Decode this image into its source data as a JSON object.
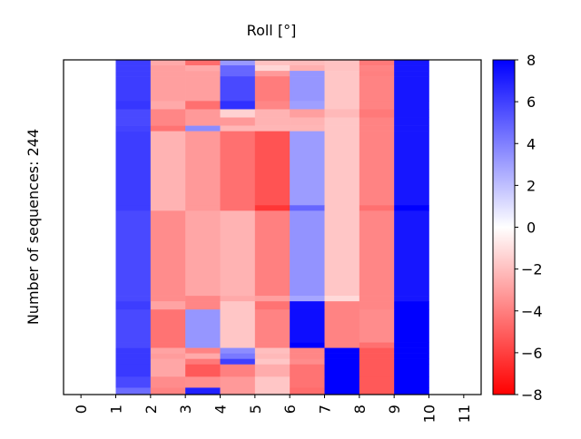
{
  "chart_data": {
    "type": "heatmap",
    "title": "Roll [°]",
    "xlabel": "",
    "ylabel": "Number of sequences: 244",
    "xlim": [
      -0.5,
      11.5
    ],
    "x_ticks": [
      "0",
      "1",
      "2",
      "3",
      "4",
      "5",
      "6",
      "7",
      "8",
      "9",
      "10",
      "11"
    ],
    "columns_x_edges": [
      1,
      2,
      3,
      4,
      5,
      6,
      7,
      8,
      9,
      10
    ],
    "ylim": [
      0,
      244
    ],
    "colormap": "bwr",
    "colors": {
      "min": "#ff0000",
      "mid": "#ffffff",
      "max": "#0000ff"
    },
    "clim": [
      -8,
      8
    ],
    "colorbar_ticks": [
      "-8",
      "-6",
      "-4",
      "-2",
      "0",
      "2",
      "4",
      "6",
      "8"
    ],
    "row_bands": [
      {
        "rows": [
          0,
          4
        ],
        "values": [
          6.1,
          -2.7,
          -4.6,
          3.2,
          -1.9,
          -2.1,
          -1.9,
          -4.2,
          7.3
        ]
      },
      {
        "rows": [
          4,
          8
        ],
        "values": [
          6.1,
          -3.0,
          -2.7,
          4.8,
          -1.3,
          -2.5,
          -1.9,
          -3.9,
          7.3
        ]
      },
      {
        "rows": [
          8,
          12
        ],
        "values": [
          6.1,
          -3.0,
          -3.0,
          4.8,
          -3.2,
          3.3,
          -1.8,
          -4.0,
          7.3
        ]
      },
      {
        "rows": [
          12,
          30
        ],
        "values": [
          6.1,
          -3.0,
          -3.0,
          5.7,
          -4.1,
          3.3,
          -1.8,
          -3.9,
          7.3
        ]
      },
      {
        "rows": [
          30,
          36
        ],
        "values": [
          6.3,
          -2.7,
          -4.5,
          6.5,
          -3.8,
          3.0,
          -1.8,
          -3.9,
          7.3
        ]
      },
      {
        "rows": [
          36,
          42
        ],
        "values": [
          5.7,
          -3.8,
          -3.2,
          -1.4,
          -2.4,
          -3.0,
          -2.2,
          -4.2,
          7.3
        ]
      },
      {
        "rows": [
          42,
          48
        ],
        "values": [
          5.7,
          -3.8,
          -3.2,
          -3.2,
          -2.4,
          -2.4,
          -1.8,
          -3.9,
          7.3
        ]
      },
      {
        "rows": [
          48,
          52
        ],
        "values": [
          5.9,
          -4.4,
          3.6,
          -2.3,
          -2.3,
          -2.3,
          -1.8,
          -3.9,
          7.3
        ]
      },
      {
        "rows": [
          52,
          106
        ],
        "values": [
          6.1,
          -2.4,
          -3.2,
          -4.5,
          -5.4,
          3.1,
          -1.8,
          -3.9,
          7.3
        ]
      },
      {
        "rows": [
          106,
          110
        ],
        "values": [
          6.1,
          -2.4,
          -3.2,
          -4.5,
          -6.3,
          4.8,
          -1.8,
          -4.5,
          8.0
        ]
      },
      {
        "rows": [
          110,
          172
        ],
        "values": [
          5.7,
          -3.6,
          -2.8,
          -2.4,
          -4.0,
          3.4,
          -1.8,
          -3.8,
          7.3
        ]
      },
      {
        "rows": [
          172,
          176
        ],
        "values": [
          5.7,
          -3.6,
          -3.8,
          -2.7,
          -3.0,
          2.8,
          -1.2,
          -3.8,
          7.3
        ]
      },
      {
        "rows": [
          176,
          182
        ],
        "values": [
          6.1,
          -2.9,
          -3.8,
          -1.8,
          -4.4,
          7.6,
          -3.9,
          -3.8,
          8.0
        ]
      },
      {
        "rows": [
          182,
          206
        ],
        "values": [
          5.7,
          -4.4,
          3.3,
          -1.8,
          -3.9,
          7.6,
          -3.9,
          -3.6,
          8.0
        ]
      },
      {
        "rows": [
          206,
          210
        ],
        "values": [
          5.7,
          -4.4,
          3.3,
          -1.8,
          -3.9,
          8.0,
          -3.9,
          -4.5,
          8.0
        ]
      },
      {
        "rows": [
          210,
          214
        ],
        "values": [
          6.2,
          -2.9,
          -3.9,
          3.6,
          -2.0,
          -3.8,
          8.0,
          -5.2,
          8.0
        ]
      },
      {
        "rows": [
          214,
          218
        ],
        "values": [
          6.2,
          -3.1,
          -2.7,
          4.2,
          -2.2,
          -3.8,
          8.0,
          -5.2,
          8.0
        ]
      },
      {
        "rows": [
          218,
          222
        ],
        "values": [
          6.2,
          -2.8,
          -4.2,
          6.0,
          -1.8,
          -3.6,
          8.0,
          -5.2,
          8.0
        ]
      },
      {
        "rows": [
          222,
          231
        ],
        "values": [
          6.2,
          -2.8,
          -5.2,
          -4.0,
          -2.6,
          -4.4,
          8.0,
          -5.2,
          8.0
        ]
      },
      {
        "rows": [
          231,
          239
        ],
        "values": [
          5.7,
          -3.6,
          -3.5,
          -3.2,
          -1.8,
          -4.4,
          8.0,
          -5.2,
          8.0
        ]
      },
      {
        "rows": [
          239,
          244
        ],
        "values": [
          4.6,
          -3.9,
          7.0,
          -3.2,
          -1.8,
          -4.6,
          8.0,
          -5.2,
          8.0
        ]
      }
    ]
  }
}
